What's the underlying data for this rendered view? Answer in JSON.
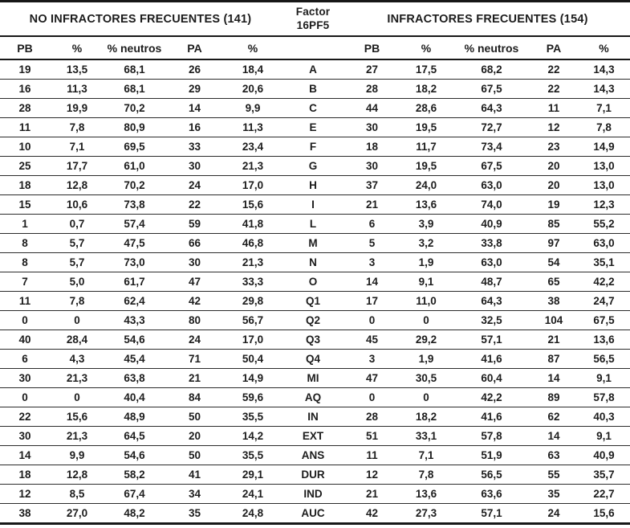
{
  "table": {
    "header": {
      "left_group": "NO INFRACTORES FRECUENTES (141)",
      "factor_line1": "Factor",
      "factor_line2": "16PF5",
      "right_group": "INFRACTORES FRECUENTES (154)"
    },
    "columns": [
      "PB",
      "%",
      "% neutros",
      "PA",
      "%"
    ],
    "rows": [
      {
        "factor": "A",
        "left": [
          "19",
          "13,5",
          "68,1",
          "26",
          "18,4"
        ],
        "right": [
          "27",
          "17,5",
          "68,2",
          "22",
          "14,3"
        ]
      },
      {
        "factor": "B",
        "left": [
          "16",
          "11,3",
          "68,1",
          "29",
          "20,6"
        ],
        "right": [
          "28",
          "18,2",
          "67,5",
          "22",
          "14,3"
        ]
      },
      {
        "factor": "C",
        "left": [
          "28",
          "19,9",
          "70,2",
          "14",
          "9,9"
        ],
        "right": [
          "44",
          "28,6",
          "64,3",
          "11",
          "7,1"
        ]
      },
      {
        "factor": "E",
        "left": [
          "11",
          "7,8",
          "80,9",
          "16",
          "11,3"
        ],
        "right": [
          "30",
          "19,5",
          "72,7",
          "12",
          "7,8"
        ]
      },
      {
        "factor": "F",
        "left": [
          "10",
          "7,1",
          "69,5",
          "33",
          "23,4"
        ],
        "right": [
          "18",
          "11,7",
          "73,4",
          "23",
          "14,9"
        ]
      },
      {
        "factor": "G",
        "left": [
          "25",
          "17,7",
          "61,0",
          "30",
          "21,3"
        ],
        "right": [
          "30",
          "19,5",
          "67,5",
          "20",
          "13,0"
        ]
      },
      {
        "factor": "H",
        "left": [
          "18",
          "12,8",
          "70,2",
          "24",
          "17,0"
        ],
        "right": [
          "37",
          "24,0",
          "63,0",
          "20",
          "13,0"
        ]
      },
      {
        "factor": "I",
        "left": [
          "15",
          "10,6",
          "73,8",
          "22",
          "15,6"
        ],
        "right": [
          "21",
          "13,6",
          "74,0",
          "19",
          "12,3"
        ]
      },
      {
        "factor": "L",
        "left": [
          "1",
          "0,7",
          "57,4",
          "59",
          "41,8"
        ],
        "right": [
          "6",
          "3,9",
          "40,9",
          "85",
          "55,2"
        ]
      },
      {
        "factor": "M",
        "left": [
          "8",
          "5,7",
          "47,5",
          "66",
          "46,8"
        ],
        "right": [
          "5",
          "3,2",
          "33,8",
          "97",
          "63,0"
        ]
      },
      {
        "factor": "N",
        "left": [
          "8",
          "5,7",
          "73,0",
          "30",
          "21,3"
        ],
        "right": [
          "3",
          "1,9",
          "63,0",
          "54",
          "35,1"
        ]
      },
      {
        "factor": "O",
        "left": [
          "7",
          "5,0",
          "61,7",
          "47",
          "33,3"
        ],
        "right": [
          "14",
          "9,1",
          "48,7",
          "65",
          "42,2"
        ]
      },
      {
        "factor": "Q1",
        "left": [
          "11",
          "7,8",
          "62,4",
          "42",
          "29,8"
        ],
        "right": [
          "17",
          "11,0",
          "64,3",
          "38",
          "24,7"
        ]
      },
      {
        "factor": "Q2",
        "left": [
          "0",
          "0",
          "43,3",
          "80",
          "56,7"
        ],
        "right": [
          "0",
          "0",
          "32,5",
          "104",
          "67,5"
        ]
      },
      {
        "factor": "Q3",
        "left": [
          "40",
          "28,4",
          "54,6",
          "24",
          "17,0"
        ],
        "right": [
          "45",
          "29,2",
          "57,1",
          "21",
          "13,6"
        ]
      },
      {
        "factor": "Q4",
        "left": [
          "6",
          "4,3",
          "45,4",
          "71",
          "50,4"
        ],
        "right": [
          "3",
          "1,9",
          "41,6",
          "87",
          "56,5"
        ]
      },
      {
        "factor": "MI",
        "left": [
          "30",
          "21,3",
          "63,8",
          "21",
          "14,9"
        ],
        "right": [
          "47",
          "30,5",
          "60,4",
          "14",
          "9,1"
        ]
      },
      {
        "factor": "AQ",
        "left": [
          "0",
          "0",
          "40,4",
          "84",
          "59,6"
        ],
        "right": [
          "0",
          "0",
          "42,2",
          "89",
          "57,8"
        ]
      },
      {
        "factor": "IN",
        "left": [
          "22",
          "15,6",
          "48,9",
          "50",
          "35,5"
        ],
        "right": [
          "28",
          "18,2",
          "41,6",
          "62",
          "40,3"
        ]
      },
      {
        "factor": "EXT",
        "left": [
          "30",
          "21,3",
          "64,5",
          "20",
          "14,2"
        ],
        "right": [
          "51",
          "33,1",
          "57,8",
          "14",
          "9,1"
        ]
      },
      {
        "factor": "ANS",
        "left": [
          "14",
          "9,9",
          "54,6",
          "50",
          "35,5"
        ],
        "right": [
          "11",
          "7,1",
          "51,9",
          "63",
          "40,9"
        ]
      },
      {
        "factor": "DUR",
        "left": [
          "18",
          "12,8",
          "58,2",
          "41",
          "29,1"
        ],
        "right": [
          "12",
          "7,8",
          "56,5",
          "55",
          "35,7"
        ]
      },
      {
        "factor": "IND",
        "left": [
          "12",
          "8,5",
          "67,4",
          "34",
          "24,1"
        ],
        "right": [
          "21",
          "13,6",
          "63,6",
          "35",
          "22,7"
        ]
      },
      {
        "factor": "AUC",
        "left": [
          "38",
          "27,0",
          "48,2",
          "35",
          "24,8"
        ],
        "right": [
          "42",
          "27,3",
          "57,1",
          "24",
          "15,6"
        ]
      }
    ],
    "colors": {
      "rule_heavy": "#171717",
      "rule_light": "#2b2b2b",
      "text": "#1c1c1c",
      "background": "#ffffff"
    }
  }
}
